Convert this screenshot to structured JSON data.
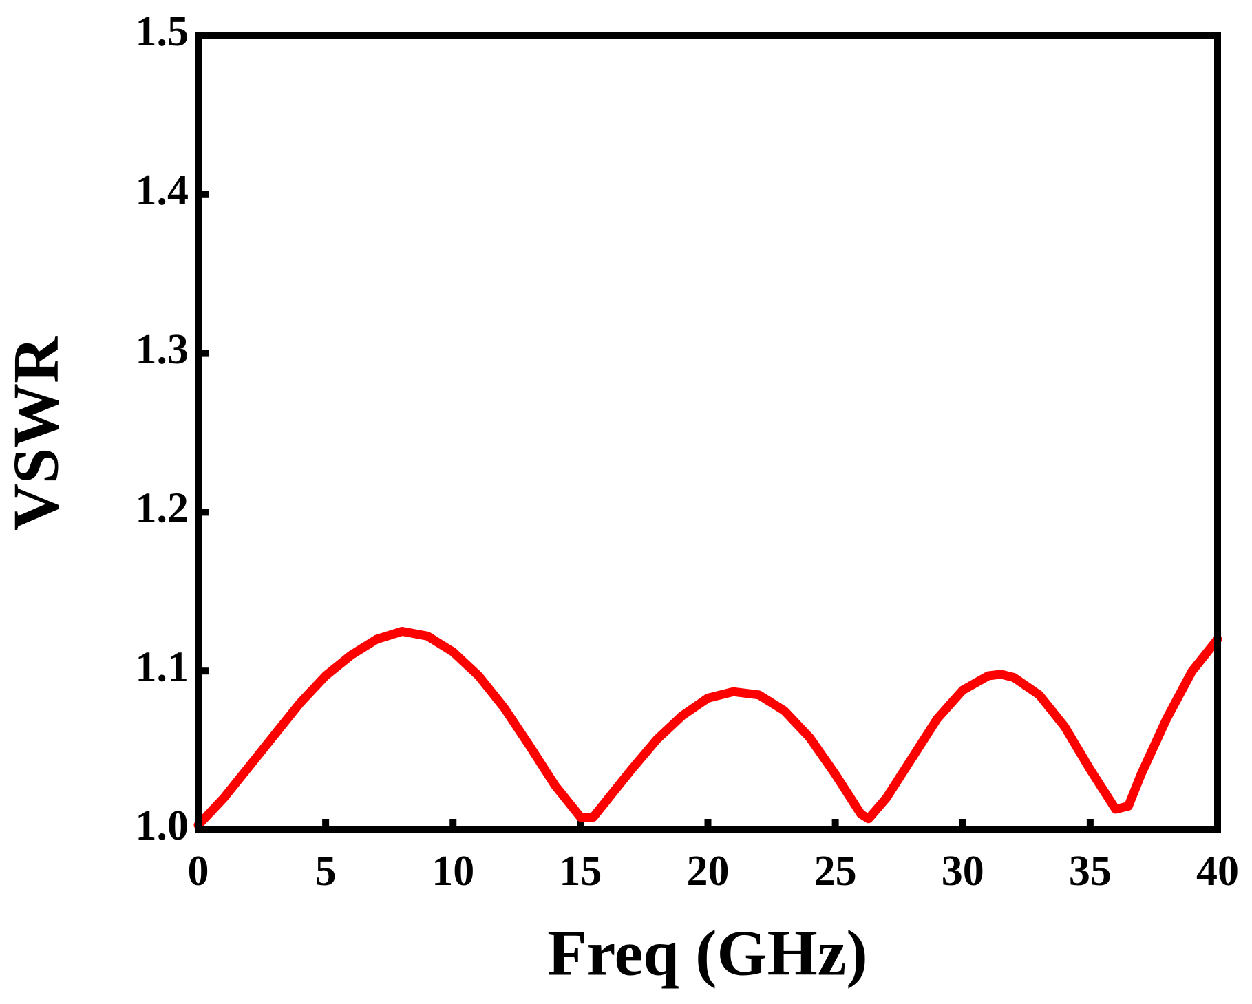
{
  "chart_data": {
    "type": "line",
    "x_label": "Freq (GHz)",
    "y_label": "VSWR",
    "x": [
      0,
      1,
      2,
      3,
      4,
      5,
      6,
      7,
      8,
      9,
      10,
      11,
      12,
      13,
      14,
      15,
      15.5,
      16,
      17,
      18,
      19,
      20,
      21,
      22,
      23,
      24,
      25,
      26,
      26.3,
      27,
      28,
      29,
      30,
      31,
      31.5,
      32,
      33,
      34,
      35,
      36,
      36.5,
      37,
      38,
      39,
      40
    ],
    "series": [
      {
        "color": "#ff0000",
        "values": [
          1.003,
          1.02,
          1.04,
          1.06,
          1.08,
          1.097,
          1.11,
          1.12,
          1.125,
          1.122,
          1.112,
          1.097,
          1.077,
          1.053,
          1.028,
          1.008,
          1.008,
          1.018,
          1.038,
          1.057,
          1.072,
          1.083,
          1.087,
          1.085,
          1.075,
          1.058,
          1.035,
          1.01,
          1.007,
          1.02,
          1.045,
          1.07,
          1.088,
          1.097,
          1.098,
          1.096,
          1.085,
          1.065,
          1.038,
          1.013,
          1.015,
          1.035,
          1.07,
          1.1,
          1.12
        ]
      }
    ],
    "xlim": [
      0,
      40
    ],
    "xticks": [
      0,
      5,
      10,
      15,
      20,
      25,
      30,
      35,
      40
    ],
    "ylim": [
      1,
      1.5
    ],
    "yticks": [
      {
        "value": 1,
        "label": "1.0"
      },
      1.1,
      1.2,
      1.3,
      1.4,
      1.5
    ],
    "grid": false
  }
}
